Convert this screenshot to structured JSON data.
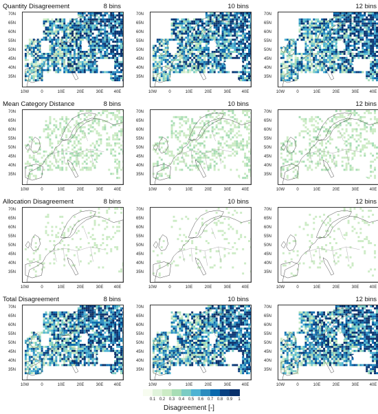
{
  "figure": {
    "colorbar_label": "Disagreement [-]",
    "colorbar_ticks": [
      "0.1",
      "0.2",
      "0.3",
      "0.4",
      "0.5",
      "0.6",
      "0.7",
      "0.8",
      "0.9",
      "1"
    ],
    "colorbar_colors": [
      "#f7fcf0",
      "#e0f3db",
      "#ccebc5",
      "#a8ddb5",
      "#7bccc4",
      "#4eb3d3",
      "#2b8cbe",
      "#0868ac",
      "#084081",
      "#08306b"
    ],
    "lat_labels": [
      "70N",
      "65N",
      "60N",
      "55N",
      "50N",
      "45N",
      "40N",
      "35N"
    ],
    "lon_labels": [
      "10W",
      "0",
      "10E",
      "20E",
      "30E",
      "40E"
    ]
  },
  "rows": [
    {
      "title": "Quantity Disagreement",
      "level": "high"
    },
    {
      "title": "Mean Category Distance",
      "level": "low"
    },
    {
      "title": "Allocation Disagreement",
      "level": "verylow"
    },
    {
      "title": "Total Disagreement",
      "level": "high"
    }
  ],
  "bins": [
    "8 bins",
    "10 bins",
    "12 bins"
  ]
}
